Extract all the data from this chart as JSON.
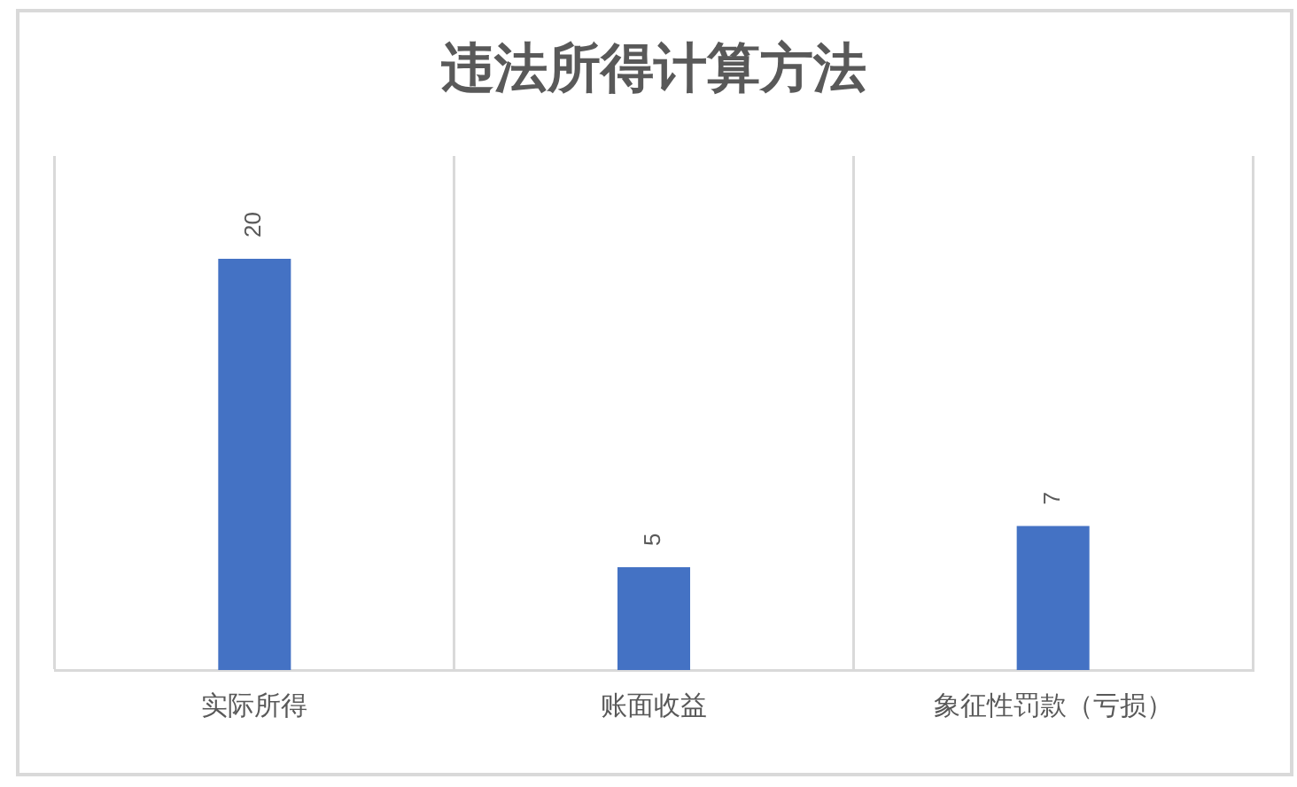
{
  "chart_data": {
    "type": "bar",
    "title": "违法所得计算方法",
    "categories": [
      "实际所得",
      "账面收益",
      "象征性罚款（亏损）"
    ],
    "values": [
      20,
      5,
      7
    ],
    "color": "#4472c4",
    "ylim": [
      0,
      25
    ],
    "tick_labels": "x",
    "grid": "x",
    "data_labels": true
  }
}
